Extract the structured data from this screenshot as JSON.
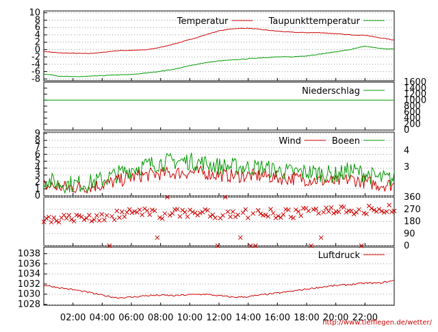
{
  "chart_data": [
    {
      "type": "line",
      "series": [
        {
          "name": "Temperatur",
          "color": "#cc0000",
          "x": [
            0,
            1,
            2,
            3,
            4,
            5,
            6,
            7,
            8,
            9,
            10,
            11,
            12,
            13,
            14,
            15,
            16,
            17,
            18,
            19,
            20,
            21,
            22,
            23,
            24
          ],
          "values": [
            -0.5,
            -0.9,
            -1.0,
            -1.1,
            -0.8,
            -0.3,
            -0.2,
            -0.1,
            0.6,
            1.6,
            2.7,
            3.9,
            5.1,
            5.7,
            5.8,
            5.4,
            5.0,
            4.7,
            4.6,
            4.6,
            4.3,
            4.0,
            3.9,
            3.2,
            2.6
          ]
        },
        {
          "name": "Taupunkttemperatur",
          "color": "#009900",
          "x": [
            0,
            1,
            2,
            3,
            4,
            5,
            6,
            7,
            8,
            9,
            10,
            11,
            12,
            13,
            14,
            15,
            16,
            17,
            18,
            19,
            20,
            21,
            22,
            23,
            24
          ],
          "values": [
            -6.6,
            -7.2,
            -7.4,
            -7.3,
            -7.1,
            -6.9,
            -6.8,
            -6.4,
            -5.9,
            -5.3,
            -4.4,
            -3.6,
            -3.1,
            -2.8,
            -2.5,
            -2.2,
            -2.0,
            -2.0,
            -1.7,
            -1.2,
            -0.6,
            0.0,
            0.9,
            0.3,
            0.1
          ]
        }
      ],
      "yticks": [
        10,
        8,
        6,
        4,
        2,
        0,
        -2,
        -4,
        -6,
        -8
      ],
      "ylim": [
        -8.5,
        10.5
      ],
      "grid": true
    },
    {
      "type": "line",
      "series": [
        {
          "name": "Niederschlag",
          "color": "#009900",
          "x": [
            0,
            24
          ],
          "values": [
            1000,
            1000
          ]
        }
      ],
      "yticks": [
        1600,
        1400,
        1200,
        1000,
        800,
        600,
        400,
        200,
        0
      ],
      "ylim": [
        0,
        1600
      ],
      "grid": false
    },
    {
      "type": "line",
      "series": [
        {
          "name": "Wind",
          "color": "#cc0000",
          "x": [
            0,
            1,
            2,
            3,
            4,
            5,
            6,
            7,
            8,
            9,
            10,
            11,
            12,
            13,
            14,
            15,
            16,
            17,
            18,
            19,
            20,
            21,
            22,
            23,
            24
          ],
          "values": [
            1.5,
            1.3,
            1.2,
            1.3,
            1.6,
            2.1,
            2.7,
            3.0,
            3.2,
            3.3,
            3.4,
            3.3,
            3.0,
            2.9,
            2.9,
            2.9,
            2.6,
            2.5,
            2.4,
            2.2,
            2.0,
            2.4,
            2.0,
            1.6,
            1.6
          ]
        },
        {
          "name": "Boeen",
          "color": "#009900",
          "x": [
            0,
            1,
            2,
            3,
            4,
            5,
            6,
            7,
            8,
            9,
            10,
            11,
            12,
            13,
            14,
            15,
            16,
            17,
            18,
            19,
            20,
            21,
            22,
            23,
            24
          ],
          "values": [
            2.4,
            1.7,
            1.7,
            1.8,
            2.3,
            3.1,
            3.9,
            4.4,
            4.8,
            5.0,
            5.0,
            4.7,
            4.3,
            4.2,
            4.1,
            4.1,
            3.6,
            3.4,
            3.4,
            3.3,
            3.0,
            3.7,
            3.2,
            2.5,
            2.4
          ]
        }
      ],
      "yticks": [
        9,
        8,
        7,
        6,
        5,
        4,
        3,
        2,
        1,
        0
      ],
      "y2ticks": [
        4,
        3
      ],
      "ylim": [
        0,
        9.2
      ],
      "grid": true
    },
    {
      "type": "scatter",
      "series": [
        {
          "color": "#cc0000",
          "x": [
            0,
            1,
            2,
            3,
            4,
            5,
            6,
            7,
            8,
            9,
            10,
            11,
            12,
            13,
            14,
            15,
            16,
            17,
            18,
            19,
            20,
            21,
            22,
            23,
            24
          ],
          "values": [
            200,
            205,
            200,
            205,
            215,
            225,
            245,
            240,
            235,
            240,
            245,
            240,
            240,
            235,
            240,
            240,
            235,
            240,
            245,
            265,
            275,
            265,
            260,
            270,
            275
          ]
        }
      ],
      "y2ticks": [
        360,
        270,
        180,
        90,
        0
      ],
      "ylim": [
        0,
        360
      ],
      "grid": true
    },
    {
      "type": "line",
      "series": [
        {
          "name": "Luftdruck",
          "color": "#cc0000",
          "x": [
            0,
            1,
            2,
            3,
            4,
            5,
            6,
            7,
            8,
            9,
            10,
            11,
            12,
            13,
            14,
            15,
            16,
            17,
            18,
            19,
            20,
            21,
            22,
            23,
            24
          ],
          "values": [
            1031.8,
            1031.3,
            1030.9,
            1030.4,
            1029.8,
            1029.3,
            1029.4,
            1029.7,
            1029.8,
            1029.7,
            1029.9,
            1030.0,
            1029.7,
            1029.4,
            1029.5,
            1029.9,
            1030.2,
            1030.6,
            1031.0,
            1031.4,
            1031.7,
            1031.9,
            1032.2,
            1032.2,
            1032.7
          ]
        }
      ],
      "yticks": [
        1038,
        1036,
        1034,
        1032,
        1030,
        1028
      ],
      "ylim": [
        1027.8,
        1039.3
      ],
      "grid": true
    }
  ],
  "xticks": [
    "02:00",
    "04:00",
    "06:00",
    "08:00",
    "10:00",
    "12:00",
    "14:00",
    "16:00",
    "18:00",
    "20:00",
    "22:00"
  ],
  "xtick_hours": [
    2,
    4,
    6,
    8,
    10,
    12,
    14,
    16,
    18,
    20,
    22
  ],
  "xlim": [
    0,
    24
  ],
  "footer_url": "http://www.tiefflegen.de/wetter/"
}
